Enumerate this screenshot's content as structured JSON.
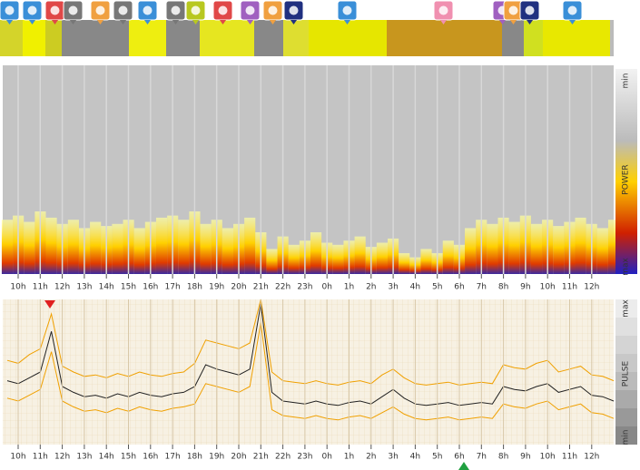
{
  "hours": [
    "10h",
    "11h",
    "12h",
    "13h",
    "14h",
    "15h",
    "16h",
    "17h",
    "18h",
    "19h",
    "20h",
    "21h",
    "22h",
    "23h",
    "0h",
    "1h",
    "2h",
    "3h",
    "4h",
    "5h",
    "6h",
    "7h",
    "8h",
    "9h",
    "10h",
    "11h",
    "12h"
  ],
  "power": {
    "scale_labels": [
      "min",
      "POWER",
      "max"
    ],
    "intensity": [
      26,
      28,
      25,
      30,
      27,
      24,
      26,
      22,
      25,
      23,
      24,
      26,
      22,
      25,
      27,
      28,
      26,
      30,
      24,
      26,
      22,
      24,
      27,
      20,
      12,
      18,
      14,
      16,
      20,
      15,
      14,
      16,
      18,
      13,
      15,
      17,
      10,
      8,
      12,
      10,
      16,
      14,
      22,
      26,
      24,
      27,
      25,
      28,
      24,
      26,
      23,
      25,
      27,
      24,
      22,
      26
    ]
  },
  "pulse": {
    "scale_labels": [
      "max",
      "PULSE",
      "min"
    ],
    "upper": [
      58,
      56,
      62,
      66,
      90,
      54,
      50,
      47,
      48,
      46,
      49,
      47,
      50,
      48,
      47,
      49,
      50,
      56,
      72,
      70,
      68,
      66,
      70,
      100,
      50,
      44,
      43,
      42,
      44,
      42,
      41,
      43,
      44,
      42,
      48,
      52,
      46,
      42,
      41,
      42,
      43,
      41,
      42,
      43,
      42,
      55,
      53,
      52,
      56,
      58,
      50,
      52,
      54,
      48,
      47,
      44
    ],
    "mean": [
      44,
      42,
      46,
      50,
      78,
      40,
      36,
      33,
      34,
      32,
      35,
      33,
      36,
      34,
      33,
      35,
      36,
      40,
      55,
      52,
      50,
      48,
      52,
      97,
      36,
      30,
      29,
      28,
      30,
      28,
      27,
      29,
      30,
      28,
      33,
      38,
      32,
      28,
      27,
      28,
      29,
      27,
      28,
      29,
      28,
      40,
      38,
      37,
      40,
      42,
      36,
      38,
      40,
      34,
      33,
      30
    ],
    "lower": [
      32,
      30,
      34,
      38,
      64,
      30,
      26,
      23,
      24,
      22,
      25,
      23,
      26,
      24,
      23,
      25,
      26,
      28,
      42,
      40,
      38,
      36,
      40,
      84,
      24,
      20,
      19,
      18,
      20,
      18,
      17,
      19,
      20,
      18,
      22,
      26,
      21,
      18,
      17,
      18,
      19,
      17,
      18,
      19,
      18,
      28,
      26,
      25,
      28,
      30,
      24,
      26,
      28,
      22,
      21,
      18
    ]
  }
}
